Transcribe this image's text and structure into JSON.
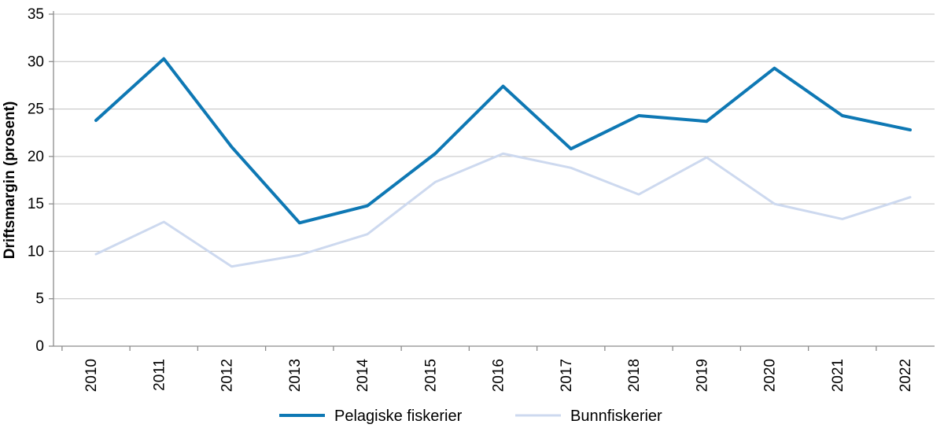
{
  "chart_data": {
    "type": "line",
    "title": "",
    "xlabel": "",
    "ylabel": "Driftsmargin (prosent)",
    "ylim": [
      0,
      35
    ],
    "ytick_step": 5,
    "yticks": [
      0,
      5,
      10,
      15,
      20,
      25,
      30,
      35
    ],
    "grid": true,
    "legend_position": "bottom",
    "categories": [
      "2010",
      "2011",
      "2012",
      "2013",
      "2014",
      "2015",
      "2016",
      "2017",
      "2018",
      "2019",
      "2020",
      "2021",
      "2022"
    ],
    "series": [
      {
        "name": "Pelagiske fiskerier",
        "color": "#0e78b4",
        "stroke_width": 4,
        "values": [
          23.8,
          30.3,
          21.0,
          13.0,
          14.8,
          20.3,
          27.4,
          20.8,
          24.3,
          23.7,
          29.3,
          24.3,
          22.8
        ]
      },
      {
        "name": "Bunnfiskerier",
        "color": "#cdd9ef",
        "stroke_width": 3,
        "values": [
          9.7,
          13.1,
          8.4,
          9.6,
          11.8,
          17.3,
          20.3,
          18.8,
          16.0,
          19.9,
          15.0,
          13.4,
          15.7
        ]
      }
    ],
    "colors": {
      "grid": "#c0c0c0",
      "axis": "#8c8c8c",
      "text": "#000000"
    }
  }
}
